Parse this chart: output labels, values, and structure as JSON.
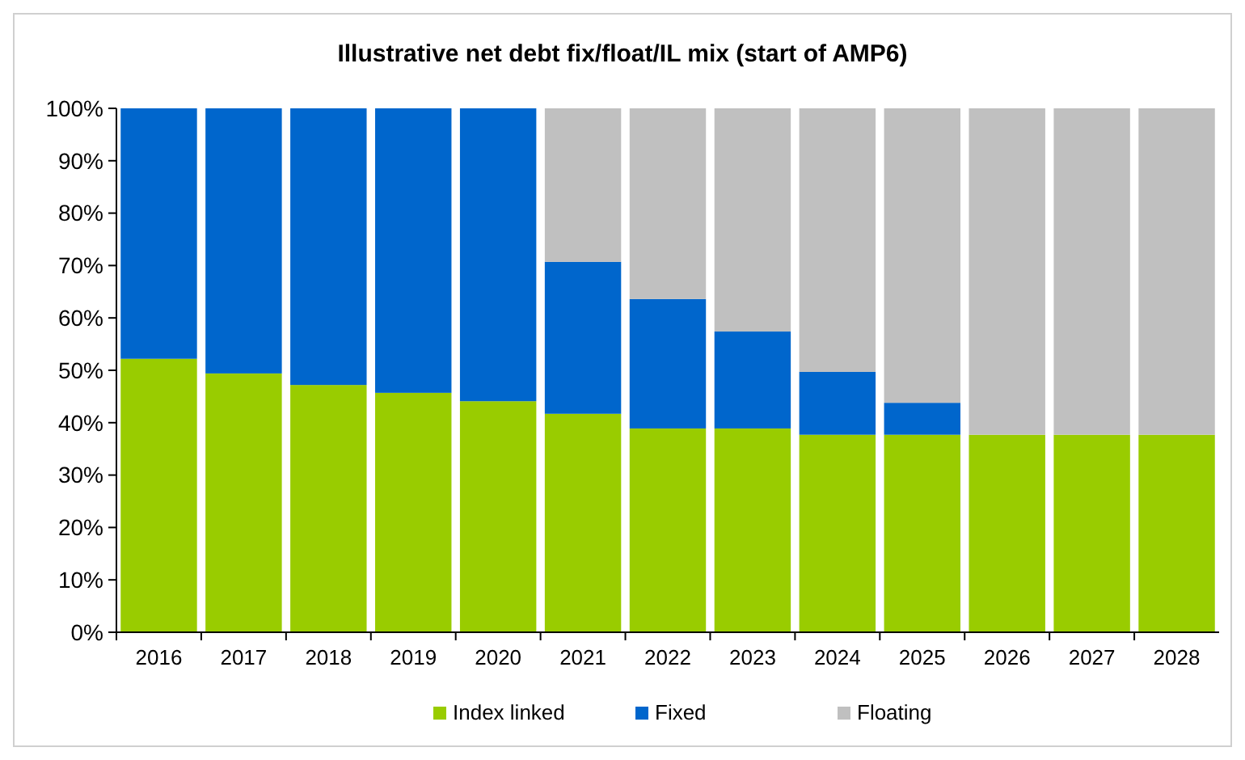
{
  "chart_data": {
    "type": "bar",
    "title": "Illustrative net debt fix/float/IL mix (start of AMP6)",
    "categories": [
      "2016",
      "2017",
      "2018",
      "2019",
      "2020",
      "2021",
      "2022",
      "2023",
      "2024",
      "2025",
      "2026",
      "2027",
      "2028"
    ],
    "stacked": true,
    "legend": "bottom",
    "grid": false,
    "series": [
      {
        "name": "Index linked",
        "color": "#99cc00",
        "values": [
          52.2,
          49.4,
          47.2,
          45.7,
          44.1,
          41.7,
          38.9,
          38.9,
          37.7,
          37.7,
          37.7,
          37.7,
          37.7
        ]
      },
      {
        "name": "Fixed",
        "color": "#0066cc",
        "values": [
          47.8,
          50.6,
          52.8,
          54.3,
          55.9,
          29,
          24.7,
          18.5,
          12,
          6.1,
          0,
          0,
          0
        ]
      },
      {
        "name": "Floating",
        "color": "#c0c0c0",
        "values": [
          0,
          0,
          0,
          0,
          0,
          29.3,
          36.4,
          42.6,
          50.3,
          56.2,
          62.3,
          62.3,
          62.3
        ]
      }
    ],
    "ylim": [
      0,
      100
    ],
    "yticks": [
      {
        "value": 0,
        "label": "0%"
      },
      {
        "value": 10,
        "label": "10%"
      },
      {
        "value": 20,
        "label": "20%"
      },
      {
        "value": 30,
        "label": "30%"
      },
      {
        "value": 40,
        "label": "40%"
      },
      {
        "value": 50,
        "label": "50%"
      },
      {
        "value": 60,
        "label": "60%"
      },
      {
        "value": 70,
        "label": "70%"
      },
      {
        "value": 80,
        "label": "80%"
      },
      {
        "value": 90,
        "label": "90%"
      },
      {
        "value": 100,
        "label": "100%"
      }
    ]
  }
}
